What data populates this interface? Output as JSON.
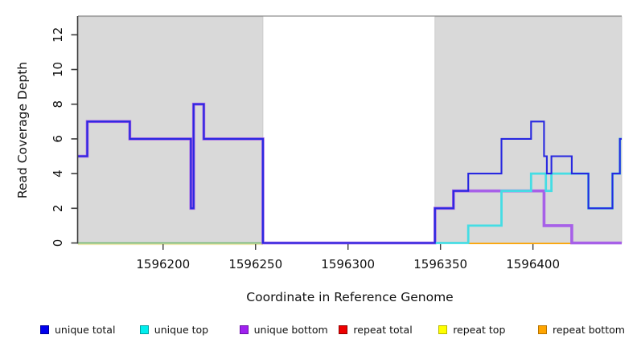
{
  "chart_data": {
    "type": "line",
    "subtype": "step-coverage",
    "title": "",
    "xlabel": "Coordinate in Reference Genome",
    "ylabel": "Read Coverage Depth",
    "xlim": [
      1596154,
      1596448
    ],
    "ylim": [
      0,
      13.08
    ],
    "x_ticks": [
      1596200,
      1596250,
      1596300,
      1596350,
      1596400
    ],
    "y_ticks": [
      0,
      2,
      4,
      6,
      8,
      10,
      12
    ],
    "grid": false,
    "legend_position": "bottom",
    "shaded_regions": [
      {
        "name": "masked-region-left",
        "x0": 1596154,
        "x1": 1596254
      },
      {
        "name": "masked-region-right",
        "x0": 1596347,
        "x1": 1596448
      }
    ],
    "colors": {
      "shade": "#d9d9d9",
      "shade_border": "#c6c6c6",
      "plot_top_border": "#8f8f8f",
      "axis": "#3c3c3c",
      "tick_text": "#111111"
    },
    "series": [
      {
        "id": "unique-bottom",
        "name": "unique bottom",
        "color": "#a760e8",
        "width": 3.6,
        "points": [
          [
            1596154,
            5
          ],
          [
            1596159,
            7
          ],
          [
            1596182,
            6
          ],
          [
            1596215,
            2
          ],
          [
            1596216.5,
            8
          ],
          [
            1596222,
            6
          ],
          [
            1596254,
            0
          ],
          [
            1596347,
            2
          ],
          [
            1596357,
            3
          ],
          [
            1596406,
            1
          ],
          [
            1596421,
            0
          ],
          [
            1596448,
            0
          ]
        ]
      },
      {
        "id": "unique-top",
        "name": "unique top",
        "color": "#45dde4",
        "width": 2.8,
        "points": [
          [
            1596347,
            0
          ],
          [
            1596365,
            1
          ],
          [
            1596383,
            3
          ],
          [
            1596399,
            4
          ],
          [
            1596407,
            3
          ],
          [
            1596410,
            4
          ],
          [
            1596430,
            2
          ],
          [
            1596443,
            4
          ],
          [
            1596447,
            6
          ],
          [
            1596448,
            6
          ]
        ]
      },
      {
        "id": "unique-total",
        "name": "unique total",
        "color": "#2828e0",
        "width": 2.1,
        "points": [
          [
            1596154,
            5
          ],
          [
            1596159,
            7
          ],
          [
            1596182,
            6
          ],
          [
            1596215,
            2
          ],
          [
            1596216.5,
            8
          ],
          [
            1596222,
            6
          ],
          [
            1596254,
            0
          ],
          [
            1596347,
            2
          ],
          [
            1596357,
            3
          ],
          [
            1596365,
            4
          ],
          [
            1596383,
            6
          ],
          [
            1596399,
            7
          ],
          [
            1596406,
            5
          ],
          [
            1596407.5,
            4
          ],
          [
            1596410,
            5
          ],
          [
            1596421,
            4
          ],
          [
            1596430,
            2
          ],
          [
            1596443,
            4
          ],
          [
            1596447,
            6
          ],
          [
            1596448,
            6
          ]
        ]
      }
    ],
    "zero_line_segments": [
      {
        "name": "repeat-top-zero-left",
        "color": "#efeab2",
        "x0": 1596154,
        "x1": 1596254,
        "dy": 1.7
      },
      {
        "name": "unique-top-zero-left",
        "color": "#76b876",
        "x0": 1596154,
        "x1": 1596254,
        "dy": 0
      },
      {
        "name": "unique-top-zero-right",
        "color": "#76b876",
        "x0": 1596347,
        "x1": 1596365,
        "dy": 0
      },
      {
        "name": "repeat-bottom-zero",
        "color": "#ffa500",
        "x0": 1596365,
        "x1": 1596421,
        "dy": 0.6
      },
      {
        "name": "repeat-total-zero",
        "color": "#e4557f",
        "x0": 1596421,
        "x1": 1596448,
        "dy": 0.6
      }
    ]
  },
  "legend": {
    "items": [
      {
        "label": "unique total",
        "color": "#0000ee",
        "border": "#00009a"
      },
      {
        "label": "unique top",
        "color": "#00eeee",
        "border": "#00a0a0"
      },
      {
        "label": "unique bottom",
        "color": "#a020f0",
        "border": "#6a12a6"
      },
      {
        "label": "repeat total",
        "color": "#ee0000",
        "border": "#8f0000"
      },
      {
        "label": "repeat top",
        "color": "#ffff00",
        "border": "#b8b800"
      },
      {
        "label": "repeat bottom",
        "color": "#ffa500",
        "border": "#b87400"
      }
    ]
  }
}
